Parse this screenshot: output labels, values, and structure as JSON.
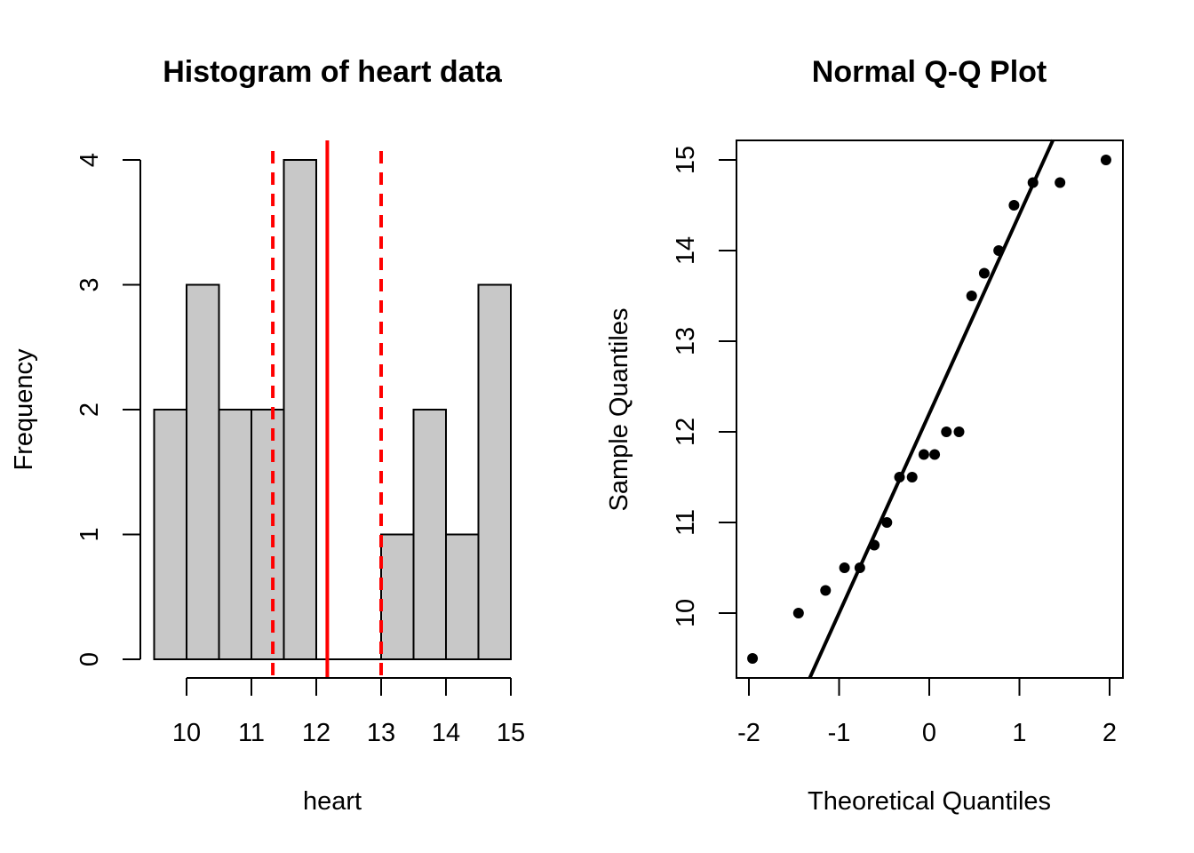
{
  "chart_data": [
    {
      "type": "bar",
      "title": "Histogram of heart data",
      "xlabel": "heart",
      "ylabel": "Frequency",
      "bin_edges": [
        9.5,
        10,
        10.5,
        11,
        11.5,
        12,
        12.5,
        13,
        13.5,
        14,
        14.5,
        15
      ],
      "values": [
        2,
        3,
        2,
        2,
        4,
        0,
        0,
        1,
        2,
        1,
        3
      ],
      "xlim": [
        9.5,
        15
      ],
      "ylim": [
        0,
        4
      ],
      "xticks": [
        "10",
        "11",
        "12",
        "13",
        "14",
        "15"
      ],
      "yticks": [
        "0",
        "1",
        "2",
        "3",
        "4"
      ],
      "bar_fill": "#c8c8c8",
      "vlines": [
        {
          "x": 12.17,
          "style": "solid",
          "color": "#ff0000"
        },
        {
          "x": 11.33,
          "style": "dashed",
          "color": "#ff0000"
        },
        {
          "x": 13.0,
          "style": "dashed",
          "color": "#ff0000"
        }
      ],
      "grid": false,
      "legend": "none"
    },
    {
      "type": "scatter",
      "title": "Normal Q-Q Plot",
      "xlabel": "Theoretical Quantiles",
      "ylabel": "Sample Quantiles",
      "points": [
        [
          -1.96,
          9.5
        ],
        [
          -1.45,
          10.0
        ],
        [
          -1.15,
          10.25
        ],
        [
          -0.94,
          10.5
        ],
        [
          -0.77,
          10.5
        ],
        [
          -0.61,
          10.75
        ],
        [
          -0.47,
          11.0
        ],
        [
          -0.33,
          11.5
        ],
        [
          -0.19,
          11.5
        ],
        [
          -0.06,
          11.75
        ],
        [
          0.06,
          11.75
        ],
        [
          0.19,
          12.0
        ],
        [
          0.33,
          12.0
        ],
        [
          0.47,
          13.5
        ],
        [
          0.61,
          13.75
        ],
        [
          0.77,
          14.0
        ],
        [
          0.94,
          14.5
        ],
        [
          1.15,
          14.75
        ],
        [
          1.45,
          14.75
        ],
        [
          1.96,
          15.0
        ]
      ],
      "reference_line": {
        "intercept": 12.2,
        "slope": 2.2,
        "color": "#000000"
      },
      "xlim": [
        -2.08,
        2.08
      ],
      "ylim": [
        9.28,
        15.22
      ],
      "xticks": [
        "-2",
        "-1",
        "0",
        "1",
        "2"
      ],
      "yticks": [
        "10",
        "11",
        "12",
        "13",
        "14",
        "15"
      ],
      "grid": false,
      "legend": "none"
    }
  ]
}
